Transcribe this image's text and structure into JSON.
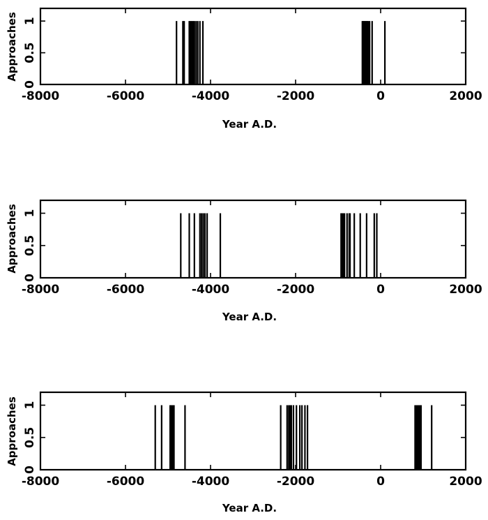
{
  "chart_data": [
    {
      "type": "bar",
      "xlabel": "Year A.D.",
      "ylabel": "Approaches",
      "xlim": [
        -8000,
        2000
      ],
      "ylim": [
        0,
        1.2
      ],
      "xticks": [
        "-8000",
        "-6000",
        "-4000",
        "-2000",
        "0",
        "2000"
      ],
      "yticks": [
        "0",
        "0.5",
        "1"
      ],
      "events_year": [
        -4800,
        -4650,
        -4620,
        -4500,
        -4470,
        -4440,
        -4410,
        -4380,
        -4340,
        -4300,
        -4250,
        -4180,
        -430,
        -410,
        -390,
        -370,
        -350,
        -330,
        -310,
        -290,
        -260,
        -200,
        100
      ],
      "events_value": 1
    },
    {
      "type": "bar",
      "xlabel": "Year A.D.",
      "ylabel": "Approaches",
      "xlim": [
        -8000,
        2000
      ],
      "ylim": [
        0,
        1.2
      ],
      "xticks": [
        "-8000",
        "-6000",
        "-4000",
        "-2000",
        "0",
        "2000"
      ],
      "yticks": [
        "0",
        "0.5",
        "1"
      ],
      "events_year": [
        -4700,
        -4500,
        -4380,
        -4250,
        -4210,
        -4170,
        -4130,
        -4080,
        -3770,
        -930,
        -910,
        -890,
        -870,
        -850,
        -790,
        -740,
        -720,
        -620,
        -480,
        -330,
        -150,
        -90
      ],
      "events_value": 1
    },
    {
      "type": "bar",
      "xlabel": "Year A.D.",
      "ylabel": "Approaches",
      "xlim": [
        -8000,
        2000
      ],
      "ylim": [
        0,
        1.2
      ],
      "xticks": [
        "-8000",
        "-6000",
        "-4000",
        "-2000",
        "0",
        "2000"
      ],
      "yticks": [
        "0",
        "0.5",
        "1"
      ],
      "events_year": [
        -5300,
        -5150,
        -4950,
        -4920,
        -4900,
        -4880,
        -4860,
        -4600,
        -2350,
        -2200,
        -2160,
        -2130,
        -2100,
        -2050,
        -1980,
        -1900,
        -1850,
        -1780,
        -1720,
        810,
        830,
        850,
        870,
        890,
        910,
        930,
        950,
        1200
      ],
      "events_value": 1
    }
  ]
}
